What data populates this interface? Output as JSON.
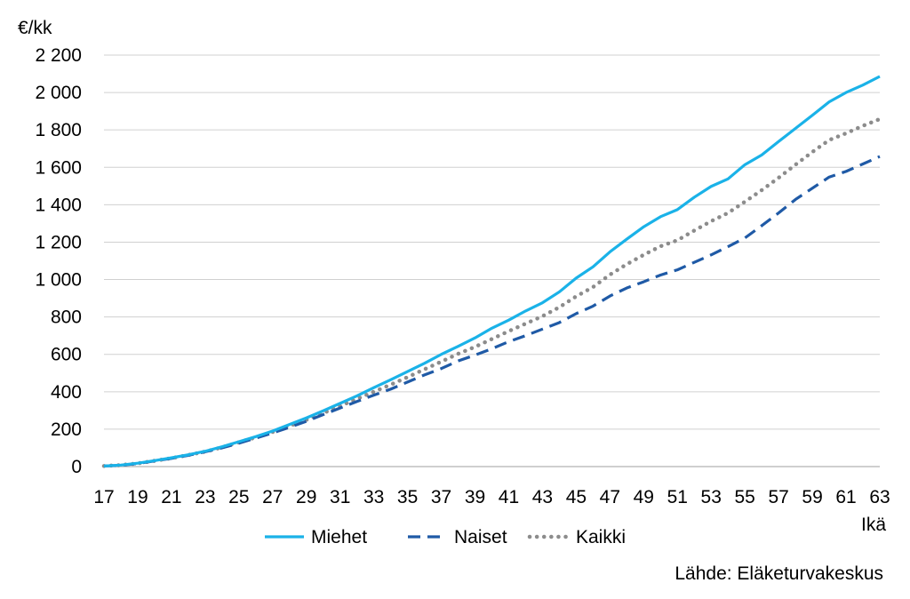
{
  "chart_data": {
    "type": "line",
    "ylabel": "€/kk",
    "xlabel": "Ikä",
    "ylim": [
      0,
      2200
    ],
    "yticks": [
      0,
      200,
      400,
      600,
      800,
      1000,
      1200,
      1400,
      1600,
      1800,
      2000,
      2200
    ],
    "ytick_labels": [
      "0",
      "200",
      "400",
      "600",
      "800",
      "1 000",
      "1 200",
      "1 400",
      "1 600",
      "1 800",
      "2 000",
      "2 200"
    ],
    "xlim": [
      17,
      63
    ],
    "xticks": [
      17,
      19,
      21,
      23,
      25,
      27,
      29,
      31,
      33,
      35,
      37,
      39,
      41,
      43,
      45,
      47,
      49,
      51,
      53,
      55,
      57,
      59,
      61,
      63
    ],
    "grid": true,
    "legend_position": "bottom",
    "x": [
      17,
      18,
      19,
      20,
      21,
      22,
      23,
      24,
      25,
      26,
      27,
      28,
      29,
      30,
      31,
      32,
      33,
      34,
      35,
      36,
      37,
      38,
      39,
      40,
      41,
      42,
      43,
      44,
      45,
      46,
      47,
      48,
      49,
      50,
      51,
      52,
      53,
      54,
      55,
      56,
      57,
      58,
      59,
      60,
      61,
      62,
      63
    ],
    "series": [
      {
        "name": "Miehet",
        "color": "#1ab2e8",
        "dash": "solid",
        "values": [
          3,
          8,
          18,
          32,
          47,
          63,
          82,
          106,
          133,
          160,
          190,
          225,
          260,
          298,
          338,
          378,
          422,
          464,
          508,
          552,
          600,
          643,
          688,
          740,
          783,
          832,
          876,
          934,
          1008,
          1068,
          1148,
          1216,
          1282,
          1336,
          1374,
          1440,
          1498,
          1538,
          1614,
          1666,
          1738,
          1808,
          1878,
          1950,
          2000,
          2040,
          2086
        ]
      },
      {
        "name": "Naiset",
        "color": "#1f5aa6",
        "dash": "dashed",
        "values": [
          3,
          7,
          16,
          30,
          44,
          60,
          79,
          100,
          125,
          152,
          180,
          210,
          242,
          278,
          313,
          348,
          382,
          414,
          452,
          490,
          524,
          565,
          596,
          630,
          668,
          700,
          735,
          770,
          818,
          858,
          912,
          955,
          988,
          1024,
          1052,
          1092,
          1132,
          1176,
          1222,
          1288,
          1356,
          1428,
          1488,
          1548,
          1578,
          1618,
          1658
        ]
      },
      {
        "name": "Kaikki",
        "color": "#8c8c8c",
        "dash": "dotted",
        "values": [
          3,
          8,
          17,
          31,
          45,
          62,
          80,
          103,
          130,
          156,
          185,
          218,
          250,
          286,
          324,
          362,
          400,
          438,
          478,
          520,
          561,
          603,
          640,
          682,
          724,
          764,
          804,
          852,
          910,
          960,
          1026,
          1082,
          1132,
          1178,
          1210,
          1262,
          1312,
          1356,
          1416,
          1478,
          1544,
          1614,
          1682,
          1746,
          1782,
          1822,
          1858
        ]
      }
    ]
  },
  "source_text": "Lähde: Eläketurvakeskus"
}
